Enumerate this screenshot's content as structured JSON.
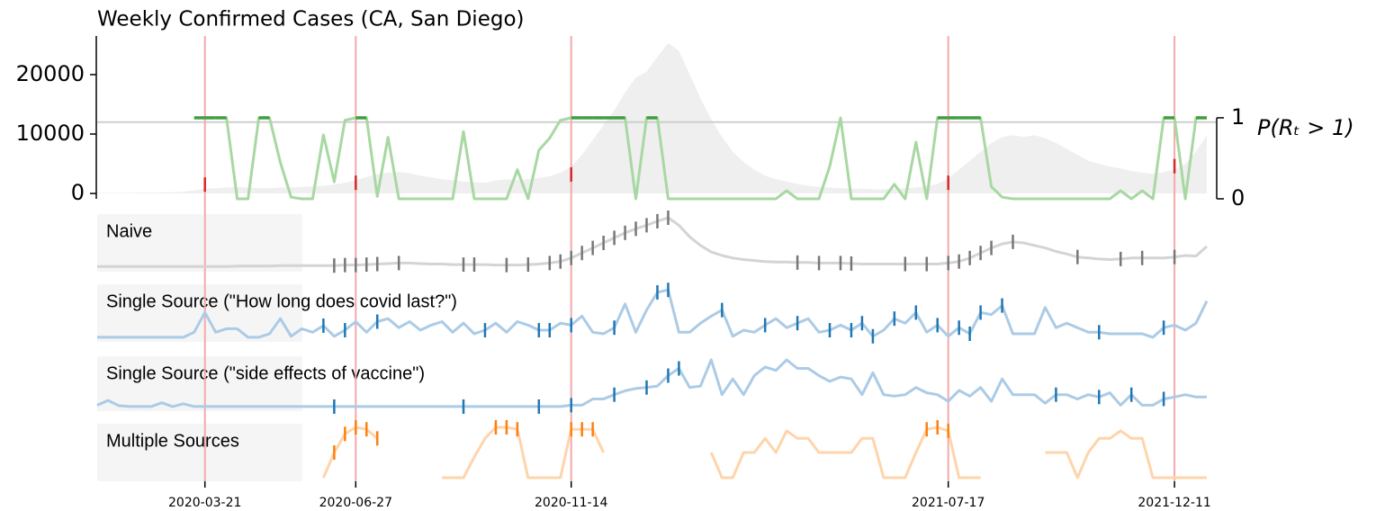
{
  "chart_data": {
    "type": "area",
    "title": "Weekly Confirmed Cases (CA, San Diego)",
    "x": [
      "2020-01-11",
      "2020-01-18",
      "2020-01-25",
      "2020-02-01",
      "2020-02-08",
      "2020-02-15",
      "2020-02-22",
      "2020-02-29",
      "2020-03-07",
      "2020-03-14",
      "2020-03-21",
      "2020-03-28",
      "2020-04-04",
      "2020-04-11",
      "2020-04-18",
      "2020-04-25",
      "2020-05-02",
      "2020-05-09",
      "2020-05-16",
      "2020-05-23",
      "2020-05-30",
      "2020-06-06",
      "2020-06-13",
      "2020-06-20",
      "2020-06-27",
      "2020-07-04",
      "2020-07-11",
      "2020-07-18",
      "2020-07-25",
      "2020-08-01",
      "2020-08-08",
      "2020-08-15",
      "2020-08-22",
      "2020-08-29",
      "2020-09-05",
      "2020-09-12",
      "2020-09-19",
      "2020-09-26",
      "2020-10-03",
      "2020-10-10",
      "2020-10-17",
      "2020-10-24",
      "2020-10-31",
      "2020-11-07",
      "2020-11-14",
      "2020-11-21",
      "2020-11-28",
      "2020-12-05",
      "2020-12-12",
      "2020-12-19",
      "2020-12-26",
      "2021-01-02",
      "2021-01-09",
      "2021-01-16",
      "2021-01-23",
      "2021-01-30",
      "2021-02-06",
      "2021-02-13",
      "2021-02-20",
      "2021-02-27",
      "2021-03-06",
      "2021-03-13",
      "2021-03-20",
      "2021-03-27",
      "2021-04-03",
      "2021-04-10",
      "2021-04-17",
      "2021-04-24",
      "2021-05-01",
      "2021-05-08",
      "2021-05-15",
      "2021-05-22",
      "2021-05-29",
      "2021-06-05",
      "2021-06-12",
      "2021-06-19",
      "2021-06-26",
      "2021-07-03",
      "2021-07-10",
      "2021-07-17",
      "2021-07-24",
      "2021-07-31",
      "2021-08-07",
      "2021-08-14",
      "2021-08-21",
      "2021-08-28",
      "2021-09-04",
      "2021-09-11",
      "2021-09-18",
      "2021-09-25",
      "2021-10-02",
      "2021-10-09",
      "2021-10-16",
      "2021-10-23",
      "2021-10-30",
      "2021-11-06",
      "2021-11-13",
      "2021-11-20",
      "2021-11-27",
      "2021-12-04",
      "2021-12-11",
      "2021-12-18",
      "2021-12-25",
      "2022-01-01"
    ],
    "xlim": [
      "2020-01-11",
      "2022-01-01"
    ],
    "xticks": [
      "2020-03-21",
      "2020-06-27",
      "2020-11-14",
      "2021-07-17",
      "2021-12-11"
    ],
    "ylim": [
      -900,
      26500
    ],
    "yticks": [
      0,
      10000,
      20000
    ],
    "y2lim": [
      0,
      2.01
    ],
    "y2ticks": [
      0,
      1
    ],
    "y2label": "P(Rₜ > 1)",
    "hline": 12000,
    "events": [
      "2020-03-21",
      "2020-06-27",
      "2020-11-14",
      "2021-07-17",
      "2021-12-11"
    ],
    "event_values": [
      1500,
      1800,
      3200,
      1800,
      4600
    ],
    "event_color": "#f4a9a9",
    "event_mark_color": "#d62728",
    "series": [
      {
        "type": "area",
        "color": "#efefef",
        "values": [
          100,
          100,
          100,
          100,
          150,
          150,
          200,
          200,
          300,
          500,
          800,
          900,
          1000,
          1100,
          1000,
          900,
          900,
          1000,
          1000,
          1100,
          1200,
          1300,
          1500,
          1800,
          2200,
          2800,
          3200,
          3500,
          3600,
          3400,
          3000,
          2700,
          2400,
          2200,
          2000,
          1900,
          1800,
          2200,
          2400,
          2300,
          2400,
          2600,
          2900,
          3500,
          4500,
          6500,
          9000,
          11500,
          14000,
          17000,
          19500,
          20500,
          23000,
          25300,
          24000,
          20000,
          16000,
          12500,
          9500,
          7000,
          5300,
          4000,
          3000,
          2400,
          2000,
          1600,
          1300,
          1100,
          1000,
          900,
          800,
          800,
          700,
          700,
          800,
          900,
          1000,
          1200,
          1600,
          2500,
          4000,
          5500,
          7000,
          8500,
          9500,
          9800,
          9500,
          9800,
          9300,
          8500,
          7500,
          6500,
          5500,
          5000,
          4500,
          4200,
          3800,
          3500,
          3300,
          3600,
          4000,
          5000,
          7000,
          9800
        ]
      },
      {
        "type": "line",
        "axis": "y2",
        "color": "#a8d8a2",
        "strong_color": "#3f9e3f",
        "values": [
          null,
          null,
          null,
          null,
          null,
          null,
          null,
          null,
          null,
          1,
          1,
          1,
          1,
          0,
          0,
          1,
          1,
          0.45,
          0.02,
          0,
          0,
          0.79,
          0.21,
          0.97,
          1,
          1,
          0.03,
          0.76,
          0,
          0,
          0,
          0,
          0,
          0,
          0.83,
          0,
          0,
          0,
          0,
          0.36,
          0,
          0.6,
          0.75,
          0.97,
          1,
          1,
          1,
          1,
          1,
          1,
          0,
          1,
          1,
          0,
          0,
          0,
          0,
          0,
          0,
          0,
          0,
          0,
          0,
          0,
          0.1,
          0,
          0,
          0,
          0.4,
          1,
          0,
          0,
          0,
          0,
          0.18,
          0,
          0.7,
          0,
          1,
          1,
          1,
          1,
          1,
          0.15,
          0.02,
          0,
          0,
          0,
          0,
          0,
          0,
          0,
          0,
          0,
          0,
          0.1,
          0,
          0.1,
          0,
          1,
          1,
          0,
          1,
          1
        ]
      }
    ],
    "panels": [
      {
        "name": "Naive",
        "color": "#d4d4d4",
        "marker_color": "#777777",
        "ylim": [
          0,
          1
        ],
        "values": [
          0.03,
          0.03,
          0.03,
          0.03,
          0.03,
          0.03,
          0.03,
          0.03,
          0.03,
          0.03,
          0.03,
          0.03,
          0.03,
          0.04,
          0.04,
          0.04,
          0.04,
          0.05,
          0.05,
          0.05,
          0.05,
          0.05,
          0.05,
          0.06,
          0.06,
          0.07,
          0.08,
          0.09,
          0.1,
          0.1,
          0.09,
          0.08,
          0.08,
          0.07,
          0.07,
          0.07,
          0.07,
          0.06,
          0.06,
          0.06,
          0.07,
          0.08,
          0.1,
          0.13,
          0.2,
          0.3,
          0.4,
          0.5,
          0.6,
          0.7,
          0.78,
          0.85,
          0.93,
          1.0,
          0.85,
          0.62,
          0.45,
          0.32,
          0.25,
          0.2,
          0.17,
          0.15,
          0.13,
          0.12,
          0.12,
          0.11,
          0.11,
          0.1,
          0.1,
          0.1,
          0.09,
          0.08,
          0.08,
          0.08,
          0.08,
          0.08,
          0.08,
          0.08,
          0.08,
          0.1,
          0.13,
          0.2,
          0.3,
          0.4,
          0.48,
          0.52,
          0.5,
          0.45,
          0.4,
          0.33,
          0.28,
          0.22,
          0.2,
          0.18,
          0.17,
          0.18,
          0.2,
          0.2,
          0.2,
          0.2,
          0.22,
          0.25,
          0.24,
          0.43
        ],
        "markers": [
          "2020-06-13",
          "2020-06-20",
          "2020-06-27",
          "2020-07-04",
          "2020-07-11",
          "2020-07-25",
          "2020-09-05",
          "2020-09-12",
          "2020-10-03",
          "2020-10-17",
          "2020-10-31",
          "2020-11-07",
          "2020-11-14",
          "2020-11-21",
          "2020-11-28",
          "2020-12-05",
          "2020-12-12",
          "2020-12-19",
          "2020-12-26",
          "2021-01-02",
          "2021-01-09",
          "2021-01-16",
          "2021-04-10",
          "2021-04-24",
          "2021-05-08",
          "2021-05-15",
          "2021-06-19",
          "2021-07-03",
          "2021-07-17",
          "2021-07-24",
          "2021-07-31",
          "2021-08-07",
          "2021-08-14",
          "2021-08-28",
          "2021-10-09",
          "2021-11-06",
          "2021-11-20",
          "2021-12-11"
        ]
      },
      {
        "name": "Single Source (\"How long does covid last?\")",
        "color": "#abcbe6",
        "marker_color": "#1f77b4",
        "ylim": [
          0,
          1
        ],
        "values": [
          0.02,
          0.02,
          0.02,
          0.02,
          0.02,
          0.02,
          0.02,
          0.02,
          0.02,
          0.12,
          0.51,
          0.12,
          0.19,
          0.19,
          0.02,
          0.02,
          0.09,
          0.39,
          0.04,
          0.19,
          0.12,
          0.25,
          0.04,
          0.16,
          0.33,
          0.12,
          0.33,
          0.39,
          0.21,
          0.33,
          0.16,
          0.26,
          0.33,
          0.12,
          0.3,
          0.09,
          0.16,
          0.3,
          0.12,
          0.33,
          0.26,
          0.16,
          0.16,
          0.3,
          0.26,
          0.44,
          0.12,
          0.09,
          0.21,
          0.68,
          0.12,
          0.56,
          0.91,
          0.96,
          0.12,
          0.12,
          0.3,
          0.44,
          0.56,
          0.04,
          0.16,
          0.12,
          0.26,
          0.39,
          0.21,
          0.3,
          0.39,
          0.12,
          0.16,
          0.26,
          0.16,
          0.3,
          0.04,
          0.16,
          0.39,
          0.3,
          0.51,
          0.12,
          0.26,
          0.04,
          0.21,
          0.09,
          0.51,
          0.47,
          0.65,
          0.09,
          0.09,
          0.09,
          0.61,
          0.21,
          0.3,
          0.21,
          0.12,
          0.12,
          0.09,
          0.09,
          0.09,
          0.09,
          0.02,
          0.21,
          0.26,
          0.16,
          0.3,
          0.74
        ],
        "markers": [
          "2020-06-06",
          "2020-06-20",
          "2020-07-11",
          "2020-09-19",
          "2020-10-24",
          "2020-10-31",
          "2020-11-14",
          "2020-12-12",
          "2021-01-09",
          "2021-01-16",
          "2021-02-20",
          "2021-03-20",
          "2021-04-10",
          "2021-05-01",
          "2021-05-15",
          "2021-05-22",
          "2021-05-29",
          "2021-06-12",
          "2021-06-26",
          "2021-07-10",
          "2021-07-24",
          "2021-07-31",
          "2021-08-07",
          "2021-08-21",
          "2021-10-23",
          "2021-12-04"
        ]
      },
      {
        "name": "Single Source (\"side effects of vaccine\")",
        "color": "#abcbe6",
        "marker_color": "#1f77b4",
        "ylim": [
          0,
          1
        ],
        "values": [
          0.05,
          0.15,
          0.04,
          0.02,
          0.02,
          0.02,
          0.1,
          0.02,
          0.08,
          0.02,
          0.02,
          0.02,
          0.02,
          0.02,
          0.02,
          0.02,
          0.02,
          0.02,
          0.02,
          0.02,
          0.02,
          0.02,
          0.02,
          0.02,
          0.02,
          0.02,
          0.02,
          0.02,
          0.02,
          0.02,
          0.02,
          0.02,
          0.02,
          0.02,
          0.02,
          0.02,
          0.02,
          0.02,
          0.02,
          0.02,
          0.02,
          0.02,
          0.02,
          0.02,
          0.05,
          0.05,
          0.18,
          0.18,
          0.27,
          0.35,
          0.4,
          0.42,
          0.45,
          0.67,
          0.82,
          0.42,
          0.45,
          1.0,
          0.27,
          0.6,
          0.27,
          0.67,
          0.85,
          0.78,
          1.0,
          0.82,
          0.82,
          0.67,
          0.55,
          0.64,
          0.6,
          0.27,
          0.73,
          0.27,
          0.24,
          0.27,
          0.42,
          0.31,
          0.27,
          0.13,
          0.36,
          0.24,
          0.42,
          0.13,
          0.6,
          0.27,
          0.27,
          0.27,
          0.09,
          0.27,
          0.27,
          0.18,
          0.27,
          0.22,
          0.31,
          0.05,
          0.27,
          0.05,
          0.05,
          0.18,
          0.22,
          0.27,
          0.22,
          0.22
        ],
        "markers": [
          "2020-06-13",
          "2020-09-05",
          "2020-10-24",
          "2020-11-14",
          "2020-12-12",
          "2021-01-02",
          "2021-01-16",
          "2021-01-23",
          "2021-09-25",
          "2021-10-23",
          "2021-11-13",
          "2021-12-04"
        ]
      },
      {
        "name": "Multiple Sources",
        "color": "#ffd4ab",
        "marker_color": "#ff7f0e",
        "ylim": [
          0,
          1
        ],
        "values": [
          null,
          null,
          null,
          null,
          null,
          null,
          null,
          null,
          null,
          null,
          null,
          null,
          null,
          null,
          null,
          null,
          null,
          null,
          null,
          null,
          null,
          0,
          0.5,
          0.87,
          1,
          0.96,
          0.78,
          null,
          null,
          null,
          null,
          null,
          0,
          0,
          0,
          0.41,
          0.78,
          1,
          1,
          0.96,
          0,
          0,
          0,
          0,
          0.96,
          0.96,
          0.96,
          0.5,
          null,
          null,
          null,
          null,
          null,
          null,
          null,
          null,
          null,
          0.5,
          0,
          0,
          0.5,
          0.5,
          0.78,
          0.5,
          0.93,
          0.78,
          0.78,
          0.5,
          0.5,
          0.5,
          0.5,
          0.78,
          0.78,
          0,
          0,
          0,
          0.5,
          0.96,
          1,
          0.93,
          0,
          0,
          0,
          null,
          null,
          null,
          null,
          null,
          0.5,
          0.5,
          0.5,
          0,
          0.5,
          0.78,
          0.78,
          0.93,
          0.78,
          0.78,
          0,
          0,
          0,
          0,
          0,
          0
        ],
        "markers": [
          "2020-06-13",
          "2020-06-20",
          "2020-06-27",
          "2020-07-04",
          "2020-07-11",
          "2020-09-26",
          "2020-10-03",
          "2020-10-10",
          "2020-11-14",
          "2020-11-21",
          "2020-11-28",
          "2021-07-03",
          "2021-07-10",
          "2021-07-17"
        ]
      }
    ]
  }
}
